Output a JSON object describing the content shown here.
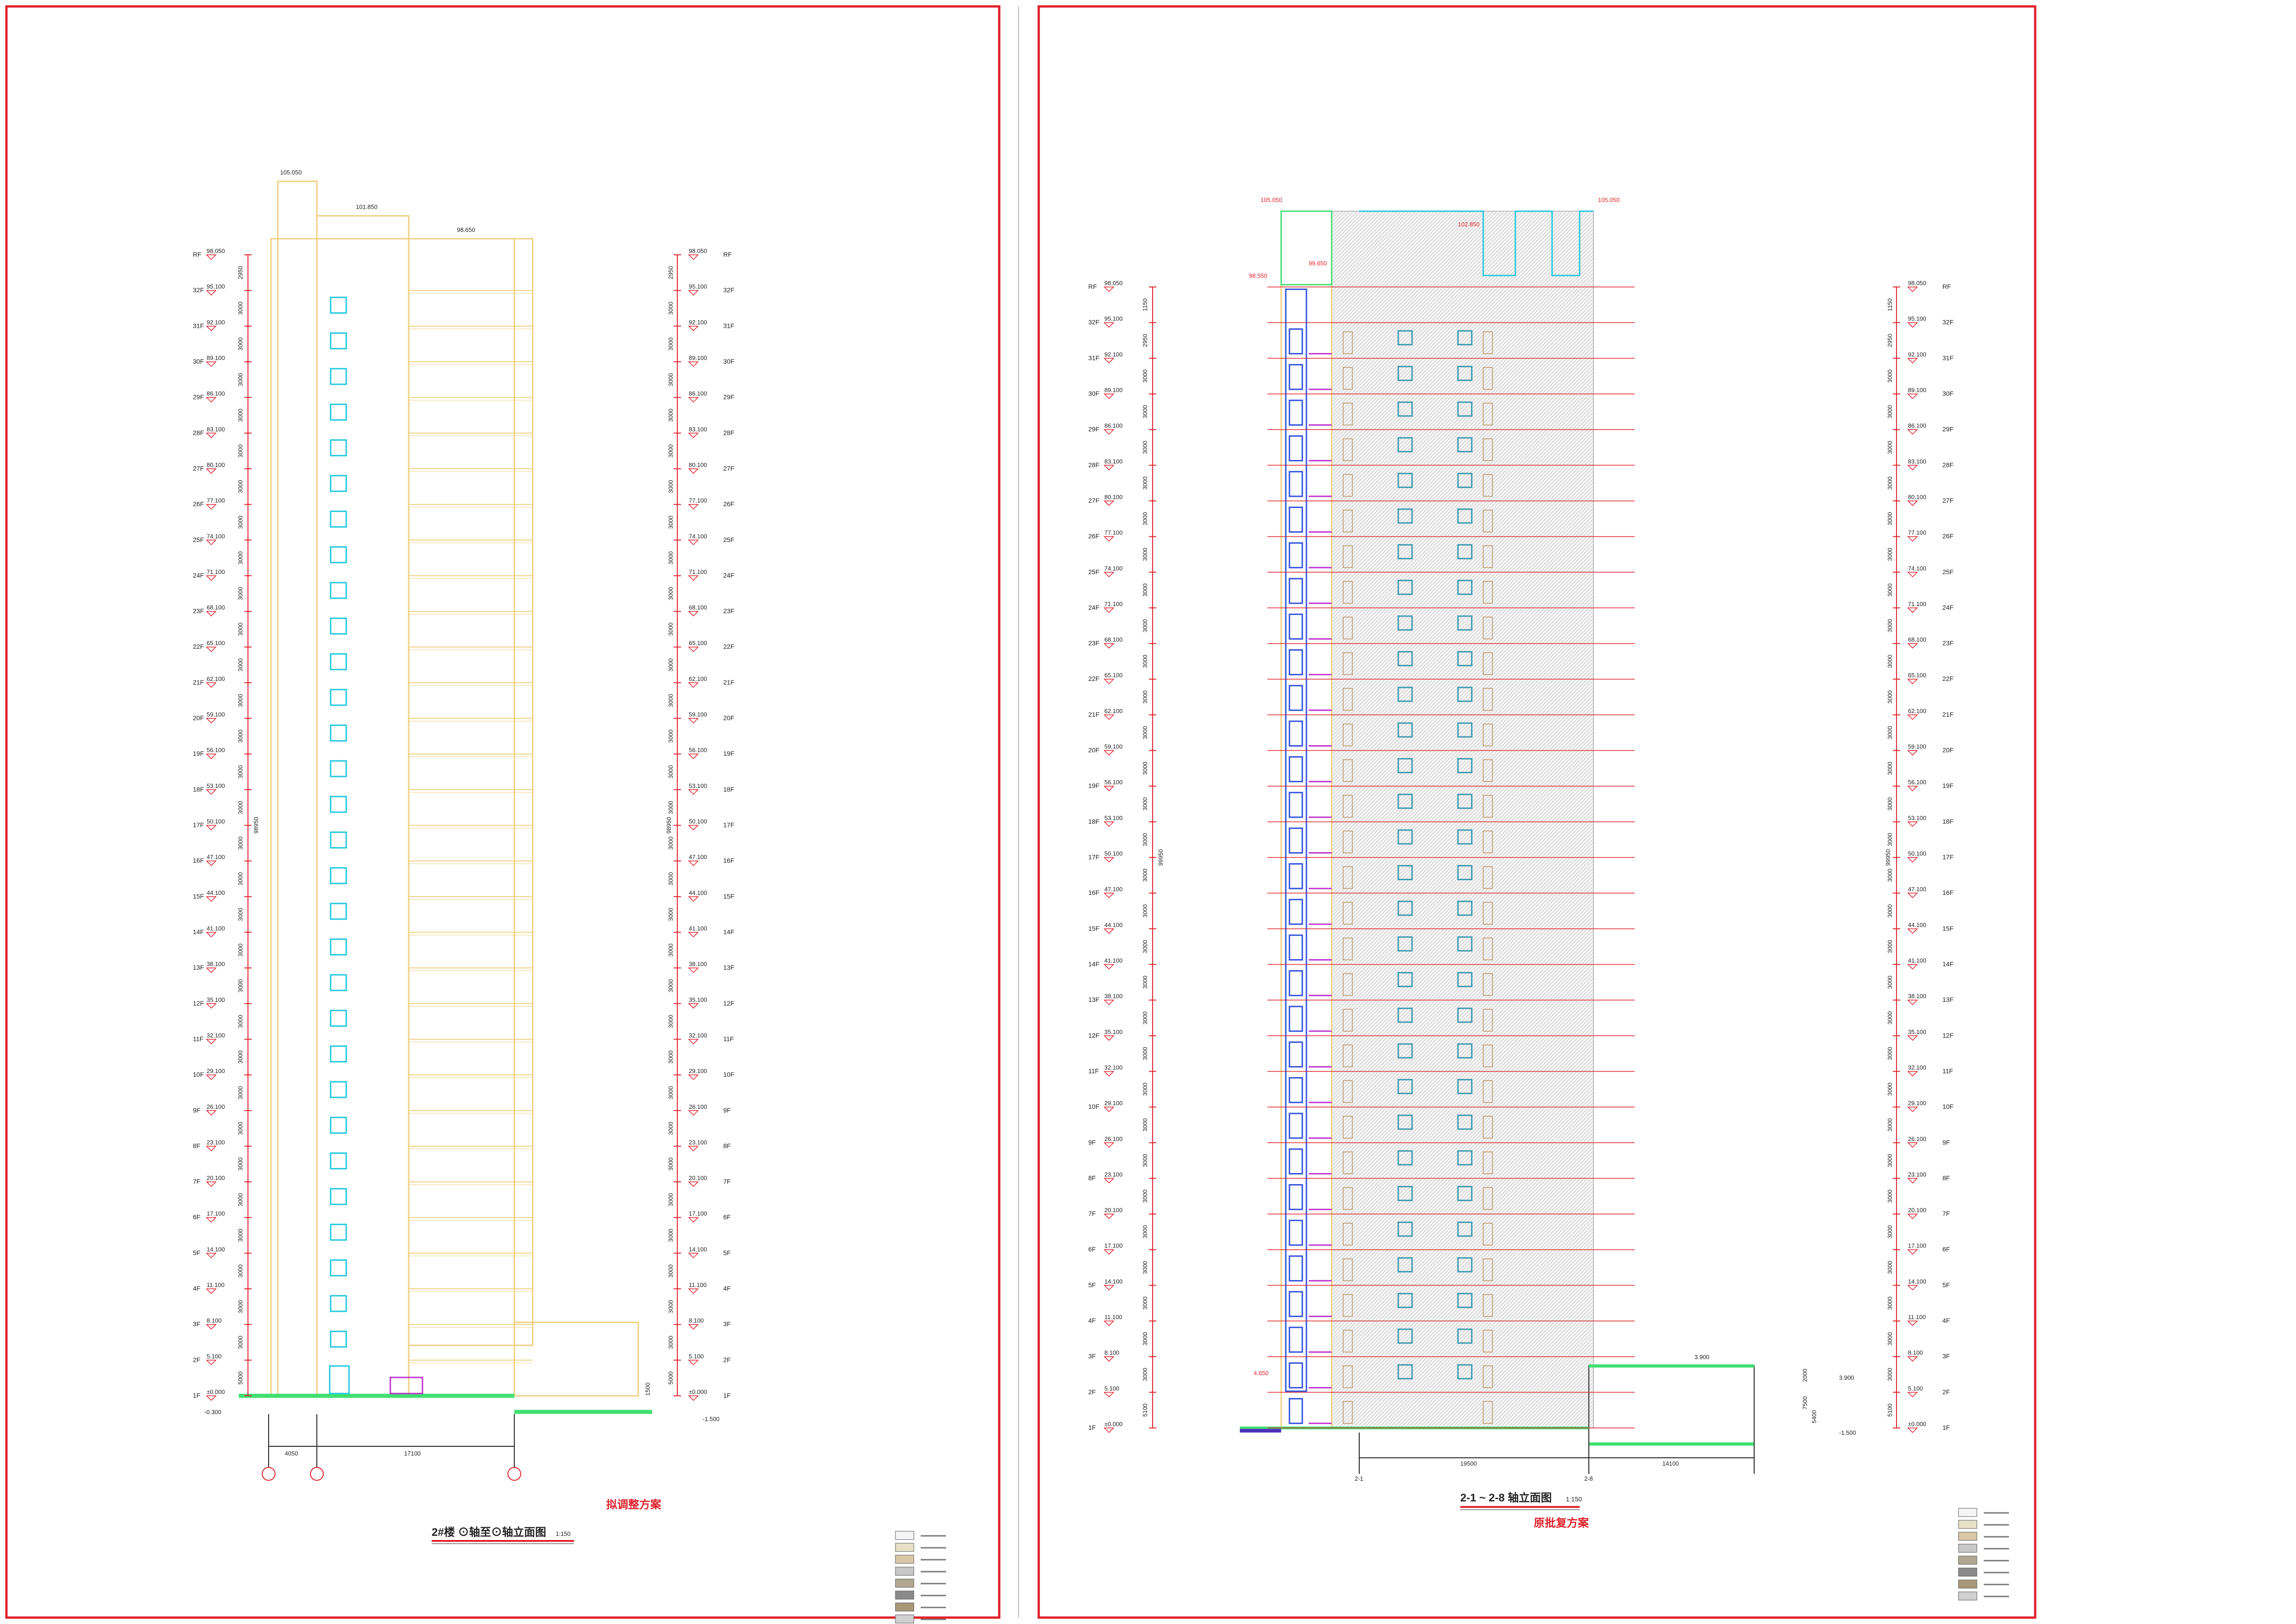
{
  "colors": {
    "frame": "#e0202a",
    "outline": "#f0d080",
    "cyan": "#20c8e0",
    "green": "#40e070",
    "magenta": "#c030d0",
    "blue": "#3050e0",
    "grid_line": "#e0202a",
    "hatch": "#c8c8c8"
  },
  "left_panel": {
    "floors_left": [
      "RF",
      "32F",
      "31F",
      "30F",
      "29F",
      "28F",
      "27F",
      "26F",
      "25F",
      "24F",
      "23F",
      "22F",
      "21F",
      "20F",
      "19F",
      "18F",
      "17F",
      "16F",
      "15F",
      "14F",
      "13F",
      "12F",
      "11F",
      "10F",
      "9F",
      "8F",
      "7F",
      "6F",
      "5F",
      "4F",
      "3F",
      "2F",
      "1F"
    ],
    "elevations": [
      "98.050",
      "95.100",
      "92.100",
      "89.100",
      "86.100",
      "83.100",
      "80.100",
      "77.100",
      "74.100",
      "71.100",
      "68.100",
      "65.100",
      "62.100",
      "59.100",
      "56.100",
      "53.100",
      "50.100",
      "47.100",
      "44.100",
      "41.100",
      "38.100",
      "35.100",
      "32.100",
      "29.100",
      "26.100",
      "23.100",
      "20.100",
      "17.100",
      "14.100",
      "11.100",
      "8.100",
      "5.100",
      "±0.000"
    ],
    "story_heights": [
      "1800",
      "2950",
      "3000",
      "3000",
      "3000",
      "3000",
      "3000",
      "3000",
      "3000",
      "3000",
      "3000",
      "3000",
      "3000",
      "3000",
      "3000",
      "3000",
      "3000",
      "3000",
      "3000",
      "3000",
      "3000",
      "3000",
      "3000",
      "3000",
      "3000",
      "3000",
      "3000",
      "3000",
      "3000",
      "3000",
      "3000",
      "3000",
      "5000"
    ],
    "total_height": "98950",
    "top_elevations": [
      "105.050",
      "101.850",
      "98.650"
    ],
    "ground_minus": [
      "-0.300",
      "-1.500"
    ],
    "bottom_dims": [
      "4050",
      "17100"
    ],
    "base_height": "1500",
    "grid_axes": [
      "1",
      "2",
      "3"
    ],
    "title": "2#楼  ⊙轴至⊙轴立面图",
    "scale": "1:150",
    "note": "拟调整方案"
  },
  "right_panel": {
    "floors_left": [
      "RF",
      "32F",
      "31F",
      "30F",
      "29F",
      "28F",
      "27F",
      "26F",
      "25F",
      "24F",
      "23F",
      "22F",
      "21F",
      "20F",
      "19F",
      "18F",
      "17F",
      "16F",
      "15F",
      "14F",
      "13F",
      "12F",
      "11F",
      "10F",
      "9F",
      "8F",
      "7F",
      "6F",
      "5F",
      "4F",
      "3F",
      "2F",
      "1F"
    ],
    "elevations": [
      "98.050",
      "95.100",
      "92.100",
      "89.100",
      "86.100",
      "83.100",
      "80.100",
      "77.100",
      "74.100",
      "71.100",
      "68.100",
      "65.100",
      "62.100",
      "59.100",
      "56.100",
      "53.100",
      "50.100",
      "47.100",
      "44.100",
      "41.100",
      "38.100",
      "35.100",
      "32.100",
      "29.100",
      "26.100",
      "23.100",
      "20.100",
      "17.100",
      "14.100",
      "11.100",
      "8.100",
      "5.100",
      "±0.000"
    ],
    "story_heights": [
      "5400",
      "1150",
      "2950",
      "3000",
      "3000",
      "3000",
      "3000",
      "3000",
      "3000",
      "3000",
      "3000",
      "3000",
      "3000",
      "3000",
      "3000",
      "3000",
      "3000",
      "3000",
      "3000",
      "3000",
      "3000",
      "3000",
      "3000",
      "3000",
      "3000",
      "3000",
      "3000",
      "3000",
      "3000",
      "3000",
      "3000",
      "3000",
      "5100"
    ],
    "total_height": "99950",
    "top_elevations": [
      "105.050",
      "102.850",
      "99.650",
      "98.550"
    ],
    "ground_minus": [
      "-1.500"
    ],
    "low_elevations": [
      "3.900",
      "4.650",
      "3.900"
    ],
    "base_dims": [
      "2000",
      "7500",
      "5400"
    ],
    "bottom_dims": [
      "19500",
      "14100"
    ],
    "grid_axes": [
      "2-1",
      "2-8"
    ],
    "title": "2-1 ~ 2-8 轴立面图",
    "scale": "1:150",
    "note": "原批复方案"
  }
}
